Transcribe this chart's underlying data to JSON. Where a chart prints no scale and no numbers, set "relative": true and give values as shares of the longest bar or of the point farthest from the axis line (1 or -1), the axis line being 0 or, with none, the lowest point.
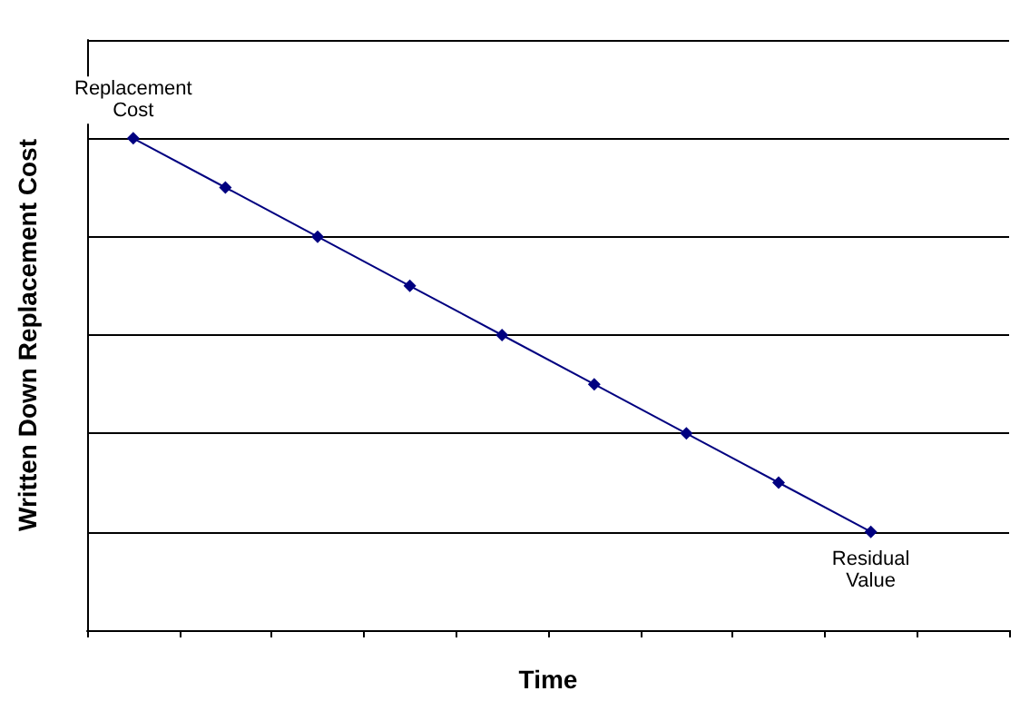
{
  "chart_data": {
    "type": "line",
    "xlabel": "Time",
    "ylabel": "Written Down Replacement Cost",
    "relative": true,
    "categories": [
      null,
      null,
      null,
      null,
      null,
      null,
      null,
      null,
      null,
      null
    ],
    "series": [
      {
        "color": "#000080",
        "values": [
          1,
          0.9,
          0.8,
          0.7,
          0.6,
          0.5,
          0.4,
          0.3,
          0.2,
          null
        ]
      }
    ],
    "annotations": [
      "Replacement\nCost",
      "Residual\nValue"
    ],
    "grid": "y",
    "marker": "diamond",
    "line_style": "solid"
  }
}
